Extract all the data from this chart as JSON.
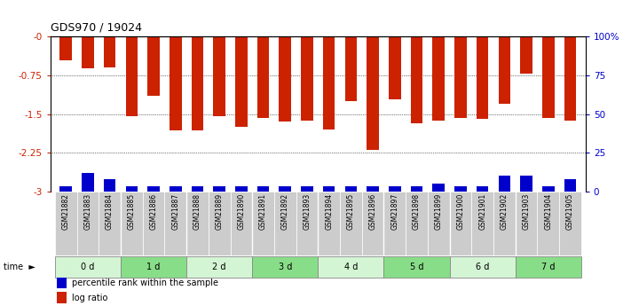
{
  "title": "GDS970 / 19024",
  "samples": [
    "GSM21882",
    "GSM21883",
    "GSM21884",
    "GSM21885",
    "GSM21886",
    "GSM21887",
    "GSM21888",
    "GSM21889",
    "GSM21890",
    "GSM21891",
    "GSM21892",
    "GSM21893",
    "GSM21894",
    "GSM21895",
    "GSM21896",
    "GSM21897",
    "GSM21898",
    "GSM21899",
    "GSM21900",
    "GSM21901",
    "GSM21902",
    "GSM21903",
    "GSM21904",
    "GSM21905"
  ],
  "log_ratio": [
    -0.45,
    -0.62,
    -0.6,
    -1.55,
    -1.15,
    -1.82,
    -1.82,
    -1.55,
    -1.75,
    -1.58,
    -1.65,
    -1.63,
    -1.8,
    -1.25,
    -2.2,
    -1.22,
    -1.68,
    -1.63,
    -1.57,
    -1.6,
    -1.3,
    -0.72,
    -1.57,
    -1.63
  ],
  "percentile": [
    3,
    12,
    8,
    3,
    3,
    3,
    3,
    3,
    3,
    3,
    3,
    3,
    3,
    3,
    3,
    3,
    3,
    5,
    3,
    3,
    10,
    10,
    3,
    8
  ],
  "groups": [
    {
      "label": "0 d",
      "start": 0,
      "end": 3
    },
    {
      "label": "1 d",
      "start": 3,
      "end": 6
    },
    {
      "label": "2 d",
      "start": 6,
      "end": 9
    },
    {
      "label": "3 d",
      "start": 9,
      "end": 12
    },
    {
      "label": "4 d",
      "start": 12,
      "end": 15
    },
    {
      "label": "5 d",
      "start": 15,
      "end": 18
    },
    {
      "label": "6 d",
      "start": 18,
      "end": 21
    },
    {
      "label": "7 d",
      "start": 21,
      "end": 24
    }
  ],
  "group_colors": [
    "#d4f5d4",
    "#88dd88",
    "#d4f5d4",
    "#88dd88",
    "#d4f5d4",
    "#88dd88",
    "#d4f5d4",
    "#88dd88"
  ],
  "ylim_left": [
    -3.0,
    0.0
  ],
  "ylim_right": [
    0,
    100
  ],
  "yticks_left": [
    0.0,
    -0.75,
    -1.5,
    -2.25,
    -3.0
  ],
  "ytick_labels_left": [
    "-0",
    "-0.75",
    "-1.5",
    "-2.25",
    "-3"
  ],
  "yticks_right": [
    0,
    25,
    50,
    75,
    100
  ],
  "ytick_labels_right": [
    "0",
    "25",
    "50",
    "75",
    "100%"
  ],
  "bar_color": "#cc2200",
  "percentile_color": "#0000cc",
  "bar_width": 0.55,
  "bg_color": "#ffffff",
  "tick_label_color_left": "#cc2200",
  "tick_label_color_right": "#0000cc",
  "sample_bg_color": "#cccccc",
  "grid_lines": [
    -0.75,
    -1.5,
    -2.25
  ],
  "legend_items": [
    {
      "label": "log ratio",
      "color": "#cc2200"
    },
    {
      "label": "percentile rank within the sample",
      "color": "#0000cc"
    }
  ],
  "time_label": "time"
}
